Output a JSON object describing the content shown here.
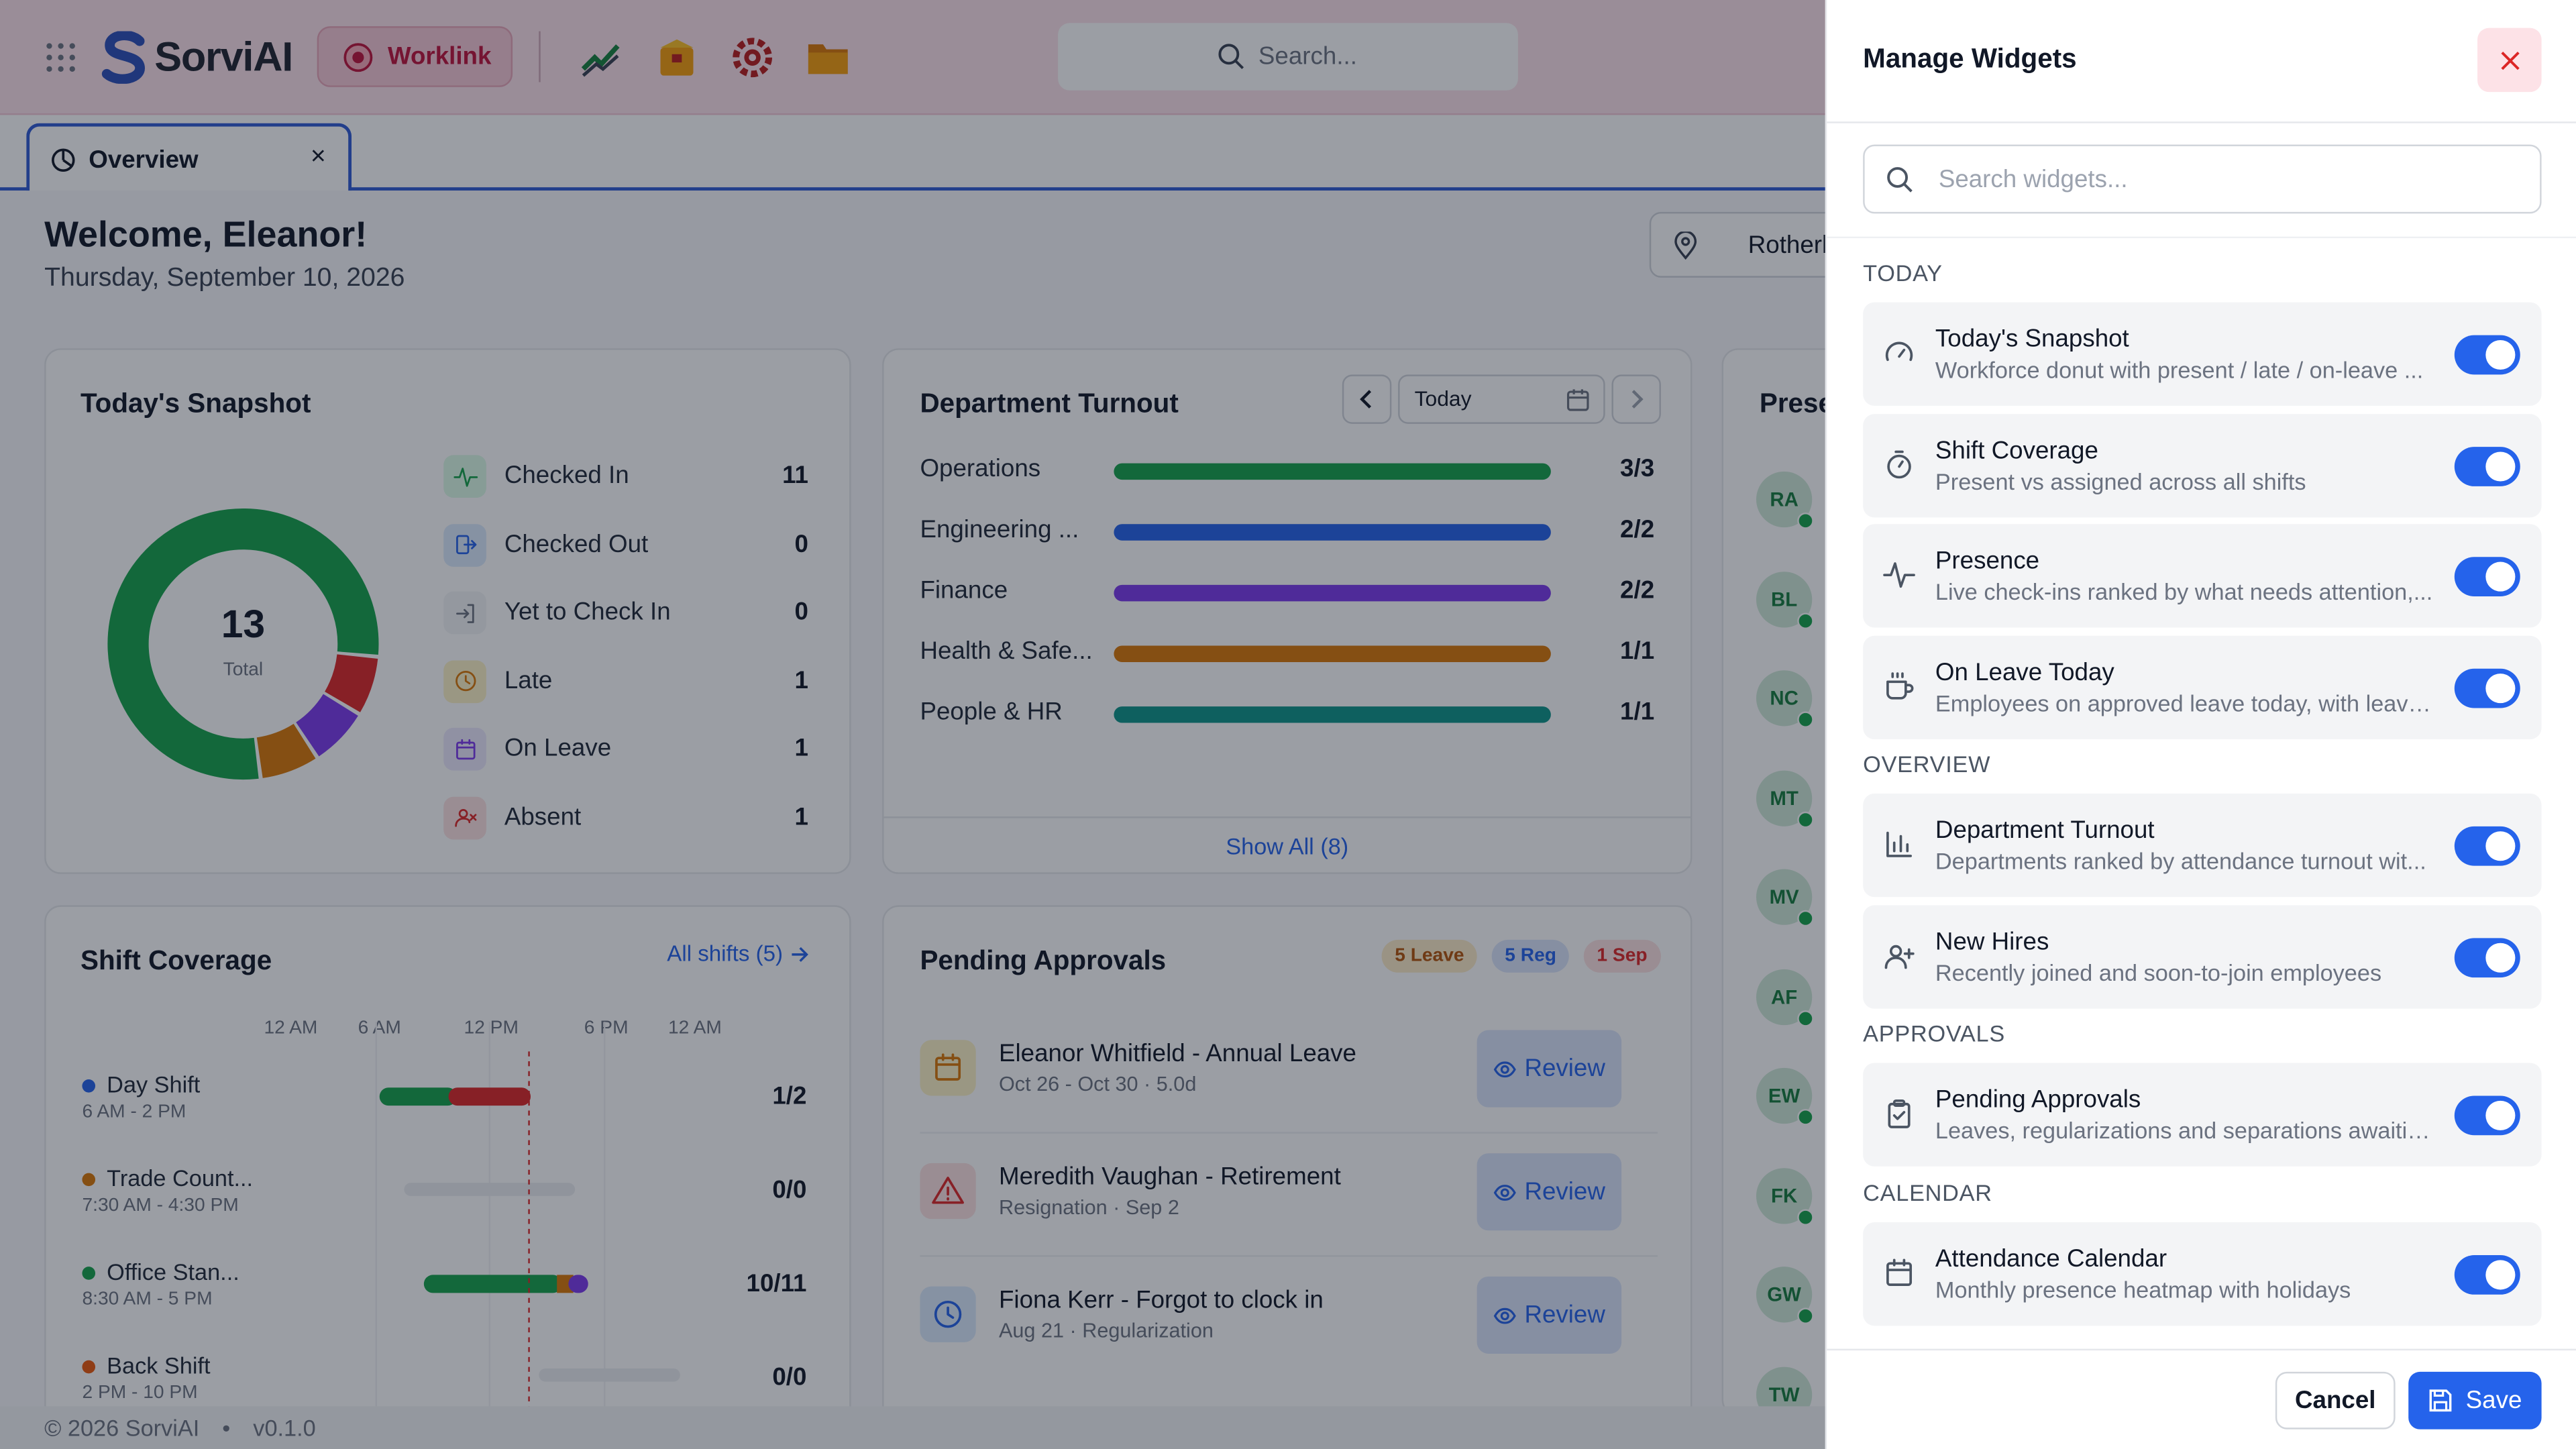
{
  "app": {
    "brand": "SorviAI",
    "module": "Worklink",
    "search_placeholder": "Search..."
  },
  "tabs": [
    {
      "label": "Overview",
      "close": "×"
    }
  ],
  "welcome": {
    "title": "Welcome, Eleanor!",
    "date": "Thursday, September 10, 2026",
    "location": "Rotherl"
  },
  "snapshot": {
    "title": "Today's Snapshot",
    "total": "13",
    "total_label": "Total",
    "rows": [
      {
        "label": "Checked In",
        "value": "11",
        "icon": "activity-icon",
        "color": "#16a34a"
      },
      {
        "label": "Checked Out",
        "value": "0",
        "icon": "log-out-icon",
        "color": "#2563eb"
      },
      {
        "label": "Yet to Check In",
        "value": "0",
        "icon": "log-in-icon",
        "color": "#6b7280"
      },
      {
        "label": "Late",
        "value": "1",
        "icon": "clock-icon",
        "color": "#d97706"
      },
      {
        "label": "On Leave",
        "value": "1",
        "icon": "calendar-icon",
        "color": "#7c3aed"
      },
      {
        "label": "Absent",
        "value": "1",
        "icon": "user-x-icon",
        "color": "#dc2626"
      }
    ]
  },
  "dept": {
    "title": "Department Turnout",
    "date_label": "Today",
    "show_all": "Show All (8)",
    "rows": [
      {
        "label": "Operations",
        "value": "3/3",
        "fraction": 1.0,
        "color": "#16a34a"
      },
      {
        "label": "Engineering ...",
        "value": "2/2",
        "fraction": 1.0,
        "color": "#2563eb"
      },
      {
        "label": "Finance",
        "value": "2/2",
        "fraction": 1.0,
        "color": "#7c3aed"
      },
      {
        "label": "Health & Safe...",
        "value": "1/1",
        "fraction": 1.0,
        "color": "#d97706"
      },
      {
        "label": "People & HR",
        "value": "1/1",
        "fraction": 1.0,
        "color": "#0d9488"
      }
    ]
  },
  "presence": {
    "title": "Prese",
    "avatars": [
      "RA",
      "BL",
      "NC",
      "MT",
      "MV",
      "AF",
      "EW",
      "FK",
      "GW",
      "TW"
    ]
  },
  "shift": {
    "title": "Shift Coverage",
    "link": "All shifts (5)",
    "axis": [
      "12 AM",
      "6 AM",
      "12 PM",
      "6 PM",
      "12 AM"
    ],
    "rows": [
      {
        "name": "Day Shift",
        "time": "6 AM - 2 PM",
        "value": "1/2",
        "color": "#2563eb"
      },
      {
        "name": "Trade Count...",
        "time": "7:30 AM - 4:30 PM",
        "value": "0/0",
        "color": "#d97706"
      },
      {
        "name": "Office Stan...",
        "time": "8:30 AM - 5 PM",
        "value": "10/11",
        "color": "#16a34a"
      },
      {
        "name": "Back Shift",
        "time": "2 PM - 10 PM",
        "value": "0/0",
        "color": "#ea580c"
      }
    ]
  },
  "approvals": {
    "title": "Pending Approvals",
    "badges": [
      "5 Leave",
      "5 Reg",
      "1 Sep"
    ],
    "review_label": "Review",
    "items": [
      {
        "title": "Eleanor Whitfield - Annual Leave",
        "sub": "Oct 26 - Oct 30 · 5.0d"
      },
      {
        "title": "Meredith Vaughan - Retirement",
        "sub": "Resignation · Sep 2"
      },
      {
        "title": "Fiona Kerr - Forgot to clock in",
        "sub": "Aug 21 · Regularization"
      }
    ]
  },
  "footer": {
    "copyright": "© 2026 SorviAI",
    "version": "v0.1.0"
  },
  "panel": {
    "title": "Manage Widgets",
    "search_placeholder": "Search widgets...",
    "cancel": "Cancel",
    "save": "Save",
    "sections": [
      {
        "label": "TODAY",
        "items": [
          {
            "name": "Today's Snapshot",
            "desc": "Workforce donut with present / late / on-leave ...",
            "icon": "gauge-icon",
            "enabled": true
          },
          {
            "name": "Shift Coverage",
            "desc": "Present vs assigned across all shifts",
            "icon": "timer-icon",
            "enabled": true
          },
          {
            "name": "Presence",
            "desc": "Live check-ins ranked by what needs attention,...",
            "icon": "activity-icon",
            "enabled": true
          },
          {
            "name": "On Leave Today",
            "desc": "Employees on approved leave today, with leave...",
            "icon": "coffee-icon",
            "enabled": true
          }
        ]
      },
      {
        "label": "OVERVIEW",
        "items": [
          {
            "name": "Department Turnout",
            "desc": "Departments ranked by attendance turnout wit...",
            "icon": "bar-chart-icon",
            "enabled": true
          },
          {
            "name": "New Hires",
            "desc": "Recently joined and soon-to-join employees",
            "icon": "user-plus-icon",
            "enabled": true
          }
        ]
      },
      {
        "label": "APPROVALS",
        "items": [
          {
            "name": "Pending Approvals",
            "desc": "Leaves, regularizations and separations awaitin...",
            "icon": "clipboard-check-icon",
            "enabled": true
          }
        ]
      },
      {
        "label": "CALENDAR",
        "items": [
          {
            "name": "Attendance Calendar",
            "desc": "Monthly presence heatmap with holidays",
            "icon": "calendar-icon",
            "enabled": true
          }
        ]
      }
    ]
  }
}
